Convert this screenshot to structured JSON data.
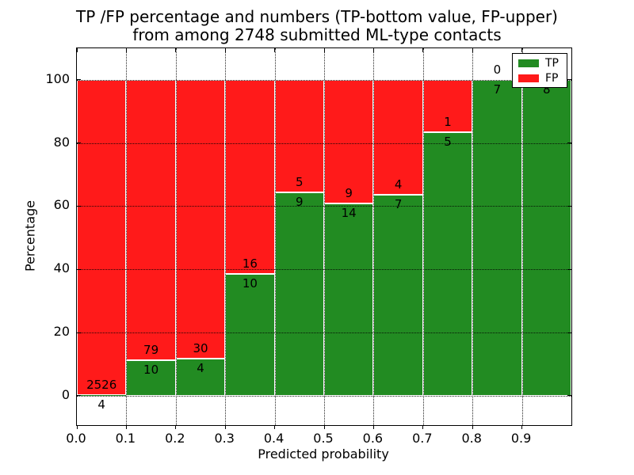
{
  "figure": {
    "title_line1": "TP /FP percentage and numbers (TP-bottom value, FP-upper)",
    "title_line2": "from among 2748 submitted ML-type contacts"
  },
  "axes": {
    "xlabel": "Predicted probability",
    "ylabel": "Percentage",
    "x_tick_labels": [
      "0.0",
      "0.1",
      "0.2",
      "0.3",
      "0.4",
      "0.5",
      "0.6",
      "0.7",
      "0.8",
      "0.9"
    ],
    "y_tick_labels": [
      "0",
      "20",
      "40",
      "60",
      "80",
      "100"
    ]
  },
  "legend": {
    "items": [
      {
        "label": "TP",
        "color": "#228b22"
      },
      {
        "label": "FP",
        "color": "#ff1a1a"
      }
    ]
  },
  "chart_data": {
    "type": "bar",
    "stacked": true,
    "title": "TP /FP percentage and numbers (TP-bottom value, FP-upper) from among 2748 submitted ML-type contacts",
    "xlabel": "Predicted probability",
    "ylabel": "Percentage",
    "categories": [
      "0.0-0.1",
      "0.1-0.2",
      "0.2-0.3",
      "0.3-0.4",
      "0.4-0.5",
      "0.5-0.6",
      "0.6-0.7",
      "0.7-0.8",
      "0.8-0.9",
      "0.9-1.0"
    ],
    "series": [
      {
        "name": "TP",
        "color": "#228b22",
        "counts": [
          4,
          10,
          4,
          10,
          9,
          14,
          7,
          5,
          7,
          8
        ],
        "pct": [
          0.16,
          11.24,
          11.76,
          38.46,
          64.29,
          60.87,
          63.64,
          83.33,
          100.0,
          100.0
        ]
      },
      {
        "name": "FP",
        "color": "#ff1a1a",
        "counts": [
          2526,
          79,
          30,
          16,
          5,
          9,
          4,
          1,
          0,
          0
        ],
        "pct": [
          99.84,
          88.76,
          88.24,
          61.54,
          35.71,
          39.13,
          36.36,
          16.67,
          0.0,
          0.0
        ]
      }
    ],
    "total_contacts": 2748,
    "x_ticks": [
      0.0,
      0.1,
      0.2,
      0.3,
      0.4,
      0.5,
      0.6,
      0.7,
      0.8,
      0.9
    ],
    "y_ticks": [
      0,
      20,
      40,
      60,
      80,
      100
    ],
    "xlim": [
      0.0,
      1.0
    ],
    "ylim": [
      -9.3,
      110
    ],
    "grid": "dotted",
    "legend_position": "upper right"
  }
}
